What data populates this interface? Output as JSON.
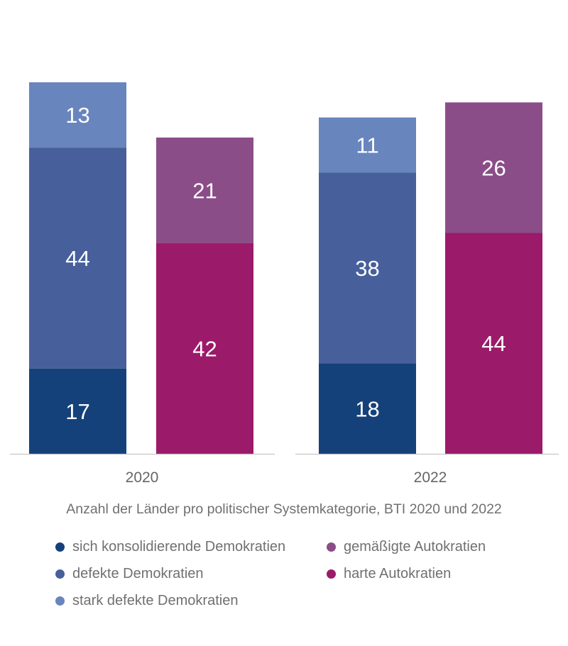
{
  "chart_data": {
    "type": "bar",
    "stacked": true,
    "caption": "Anzahl der Länder pro politischer Systemkategorie, BTI 2020 und 2022",
    "groups": [
      {
        "label": "2020",
        "stacks": [
          [
            {
              "series": "sich konsolidierende Demokratien",
              "value": 17
            },
            {
              "series": "defekte Demokratien",
              "value": 44
            },
            {
              "series": "stark defekte Demokratien",
              "value": 13
            }
          ],
          [
            {
              "series": "harte Autokratien",
              "value": 42
            },
            {
              "series": "gemäßigte Autokratien",
              "value": 21
            }
          ]
        ]
      },
      {
        "label": "2022",
        "stacks": [
          [
            {
              "series": "sich konsolidierende Demokratien",
              "value": 18
            },
            {
              "series": "defekte Demokratien",
              "value": 38
            },
            {
              "series": "stark defekte Demokratien",
              "value": 11
            }
          ],
          [
            {
              "series": "harte Autokratien",
              "value": 44
            },
            {
              "series": "gemäßigte Autokratien",
              "value": 26
            }
          ]
        ]
      }
    ],
    "series": [
      {
        "name": "sich konsolidierende Demokratien",
        "color": "#15417a"
      },
      {
        "name": "defekte Demokratien",
        "color": "#47609c"
      },
      {
        "name": "stark defekte Demokratien",
        "color": "#6885bd"
      },
      {
        "name": "gemäßigte Autokratien",
        "color": "#8b4d88"
      },
      {
        "name": "harte Autokratien",
        "color": "#9b1a6a"
      }
    ],
    "ylim": [
      0,
      80
    ],
    "grid": false,
    "legend_position": "bottom"
  },
  "legend": {
    "items": [
      {
        "label": "sich konsolidierende Demokratien",
        "color": "#15417a"
      },
      {
        "label": "gemäßigte Autokratien",
        "color": "#8b4d88"
      },
      {
        "label": "defekte Demokratien",
        "color": "#47609c"
      },
      {
        "label": "harte Autokratien",
        "color": "#9b1a6a"
      },
      {
        "label": "stark defekte Demokratien",
        "color": "#6885bd"
      }
    ]
  }
}
